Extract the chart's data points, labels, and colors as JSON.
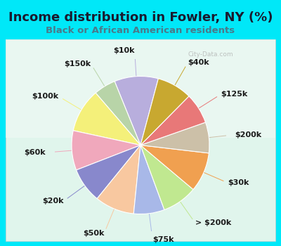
{
  "title": "Income distribution in Fowler, NY (%)",
  "subtitle": "Black or African American residents",
  "watermark": "© City-Data.com",
  "background_color": "#00e8f8",
  "chart_bg": "#e8f5ee",
  "labels": [
    "$10k",
    "$150k",
    "$100k",
    "$60k",
    "$20k",
    "$50k",
    "$75k",
    "> $200k",
    "$30k",
    "$200k",
    "$125k",
    "$40k"
  ],
  "sizes": [
    10,
    5,
    10,
    9,
    8,
    9,
    7,
    8,
    9,
    7,
    7,
    8
  ],
  "colors": [
    "#b8aedd",
    "#b8d4a8",
    "#f4f07a",
    "#f0a8bc",
    "#8888cc",
    "#f8c8a0",
    "#a8b8e8",
    "#c0e890",
    "#f0a050",
    "#ccc0a8",
    "#e87878",
    "#c8a830"
  ],
  "title_fontsize": 13,
  "subtitle_fontsize": 9.5,
  "label_fontsize": 8,
  "title_color": "#1a1a2e",
  "subtitle_color": "#4a7a8a",
  "startangle": 75
}
